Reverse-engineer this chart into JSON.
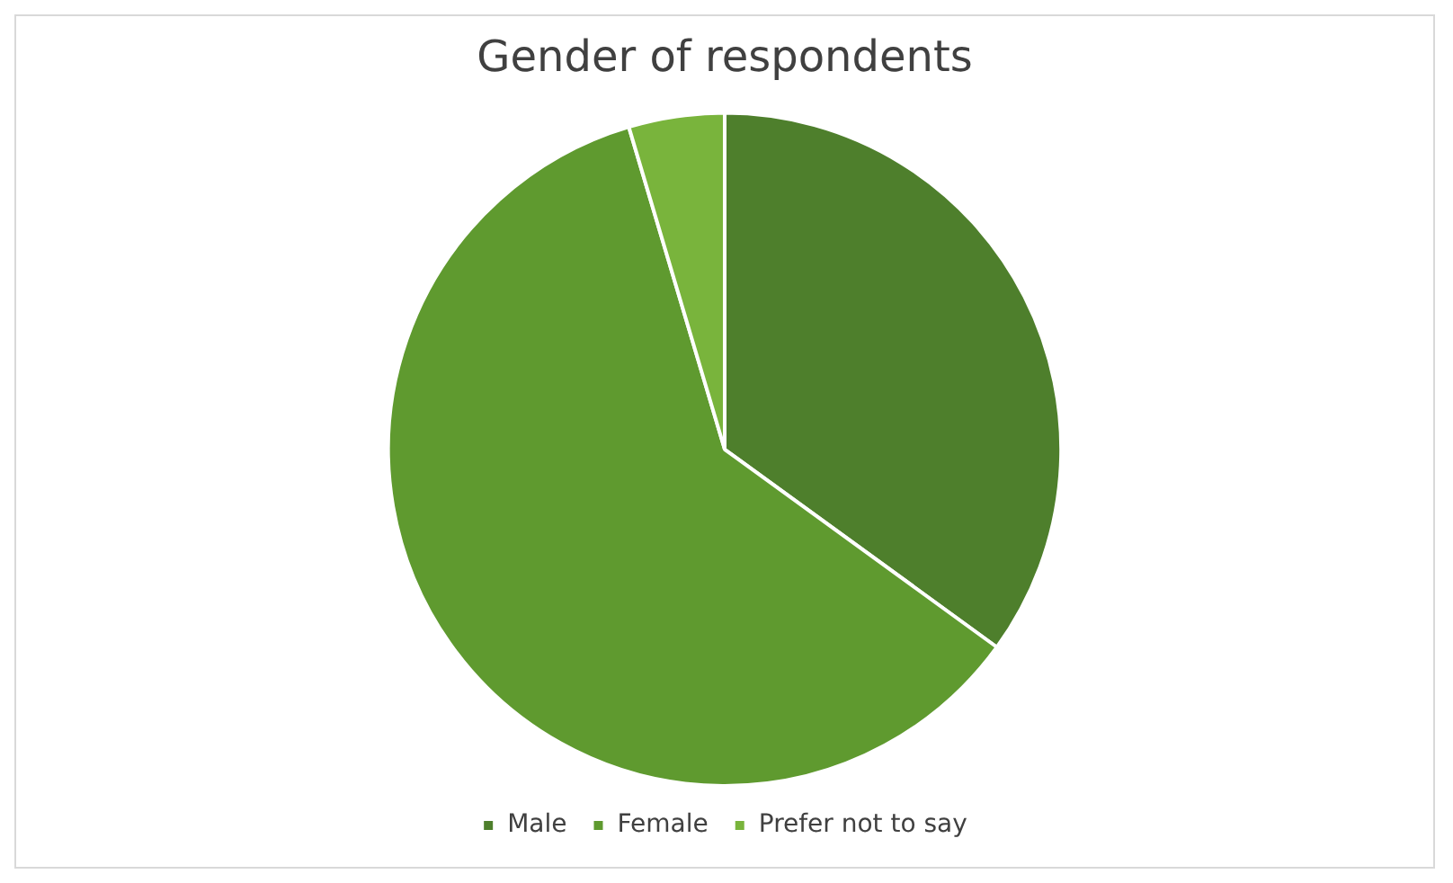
{
  "chart_data": {
    "type": "pie",
    "title": "Gender of respondents",
    "categories": [
      "Male",
      "Female",
      "Prefer not to say"
    ],
    "values": [
      35,
      60.4,
      4.6
    ],
    "colors": [
      "#4e7f2c",
      "#5f9a2f",
      "#79b43c"
    ],
    "legend": "bottom"
  }
}
